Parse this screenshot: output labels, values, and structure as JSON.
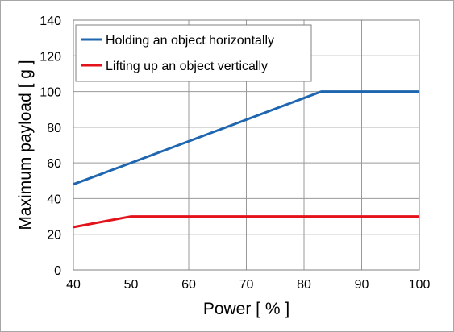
{
  "chart_data": {
    "type": "line",
    "title": "",
    "xlabel": "Power [ % ]",
    "ylabel": "Maximum payload [ g ]",
    "xlim": [
      40,
      100
    ],
    "ylim": [
      0,
      140
    ],
    "xticks": [
      40,
      50,
      60,
      70,
      80,
      90,
      100
    ],
    "yticks": [
      0,
      20,
      40,
      60,
      80,
      100,
      120,
      140
    ],
    "grid": true,
    "legend": "top-left, inside plot",
    "series": [
      {
        "name": "Holding an object horizontally",
        "color": "#1f66b0",
        "x": [
          40,
          50,
          83,
          100
        ],
        "y": [
          48,
          60,
          100,
          100
        ]
      },
      {
        "name": "Lifting up an object vertically",
        "color": "#e3121b",
        "x": [
          40,
          50,
          100
        ],
        "y": [
          24,
          30,
          30
        ]
      }
    ]
  }
}
